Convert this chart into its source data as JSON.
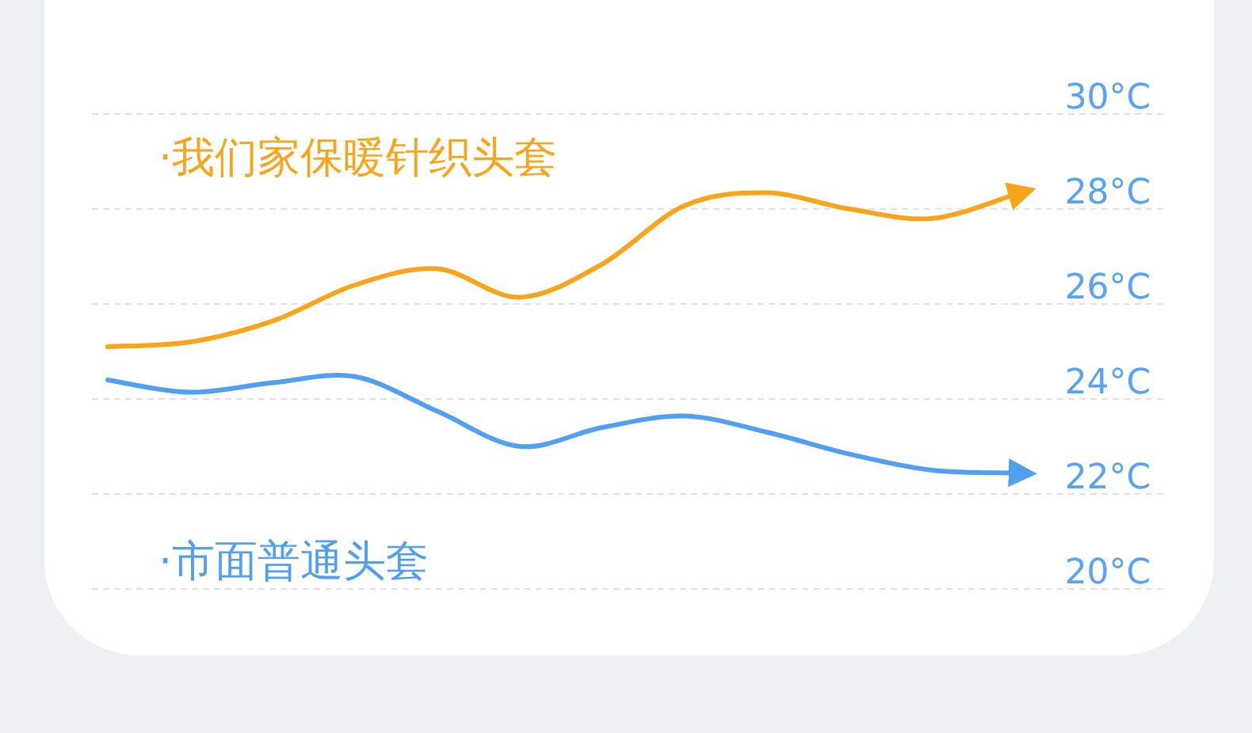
{
  "chart_data": {
    "type": "line",
    "categories": [
      null,
      null,
      null,
      null,
      null,
      null,
      null,
      null,
      null,
      null,
      null,
      null
    ],
    "series": [
      {
        "name": "·我们家保暖针织头套",
        "color": "#f9a51b",
        "values": [
          25.1,
          25.2,
          25.64,
          26.4,
          26.74,
          26.14,
          26.84,
          28.07,
          28.34,
          28.0,
          27.8,
          28.3
        ]
      },
      {
        "name": "·市面普通头套",
        "color": "#529ff0",
        "values": [
          24.4,
          24.14,
          24.34,
          24.47,
          23.74,
          23.0,
          23.4,
          23.64,
          23.3,
          22.84,
          22.5,
          22.44
        ]
      }
    ],
    "ylim": [
      20,
      30
    ],
    "yticks": [
      {
        "value": 30,
        "label": "30°C"
      },
      {
        "value": 28,
        "label": "28°C"
      },
      {
        "value": 26,
        "label": "26°C"
      },
      {
        "value": 24,
        "label": "24°C"
      },
      {
        "value": 22,
        "label": "22°C"
      },
      {
        "value": 20,
        "label": "20°C"
      }
    ],
    "grid": "y",
    "marker": "none"
  }
}
